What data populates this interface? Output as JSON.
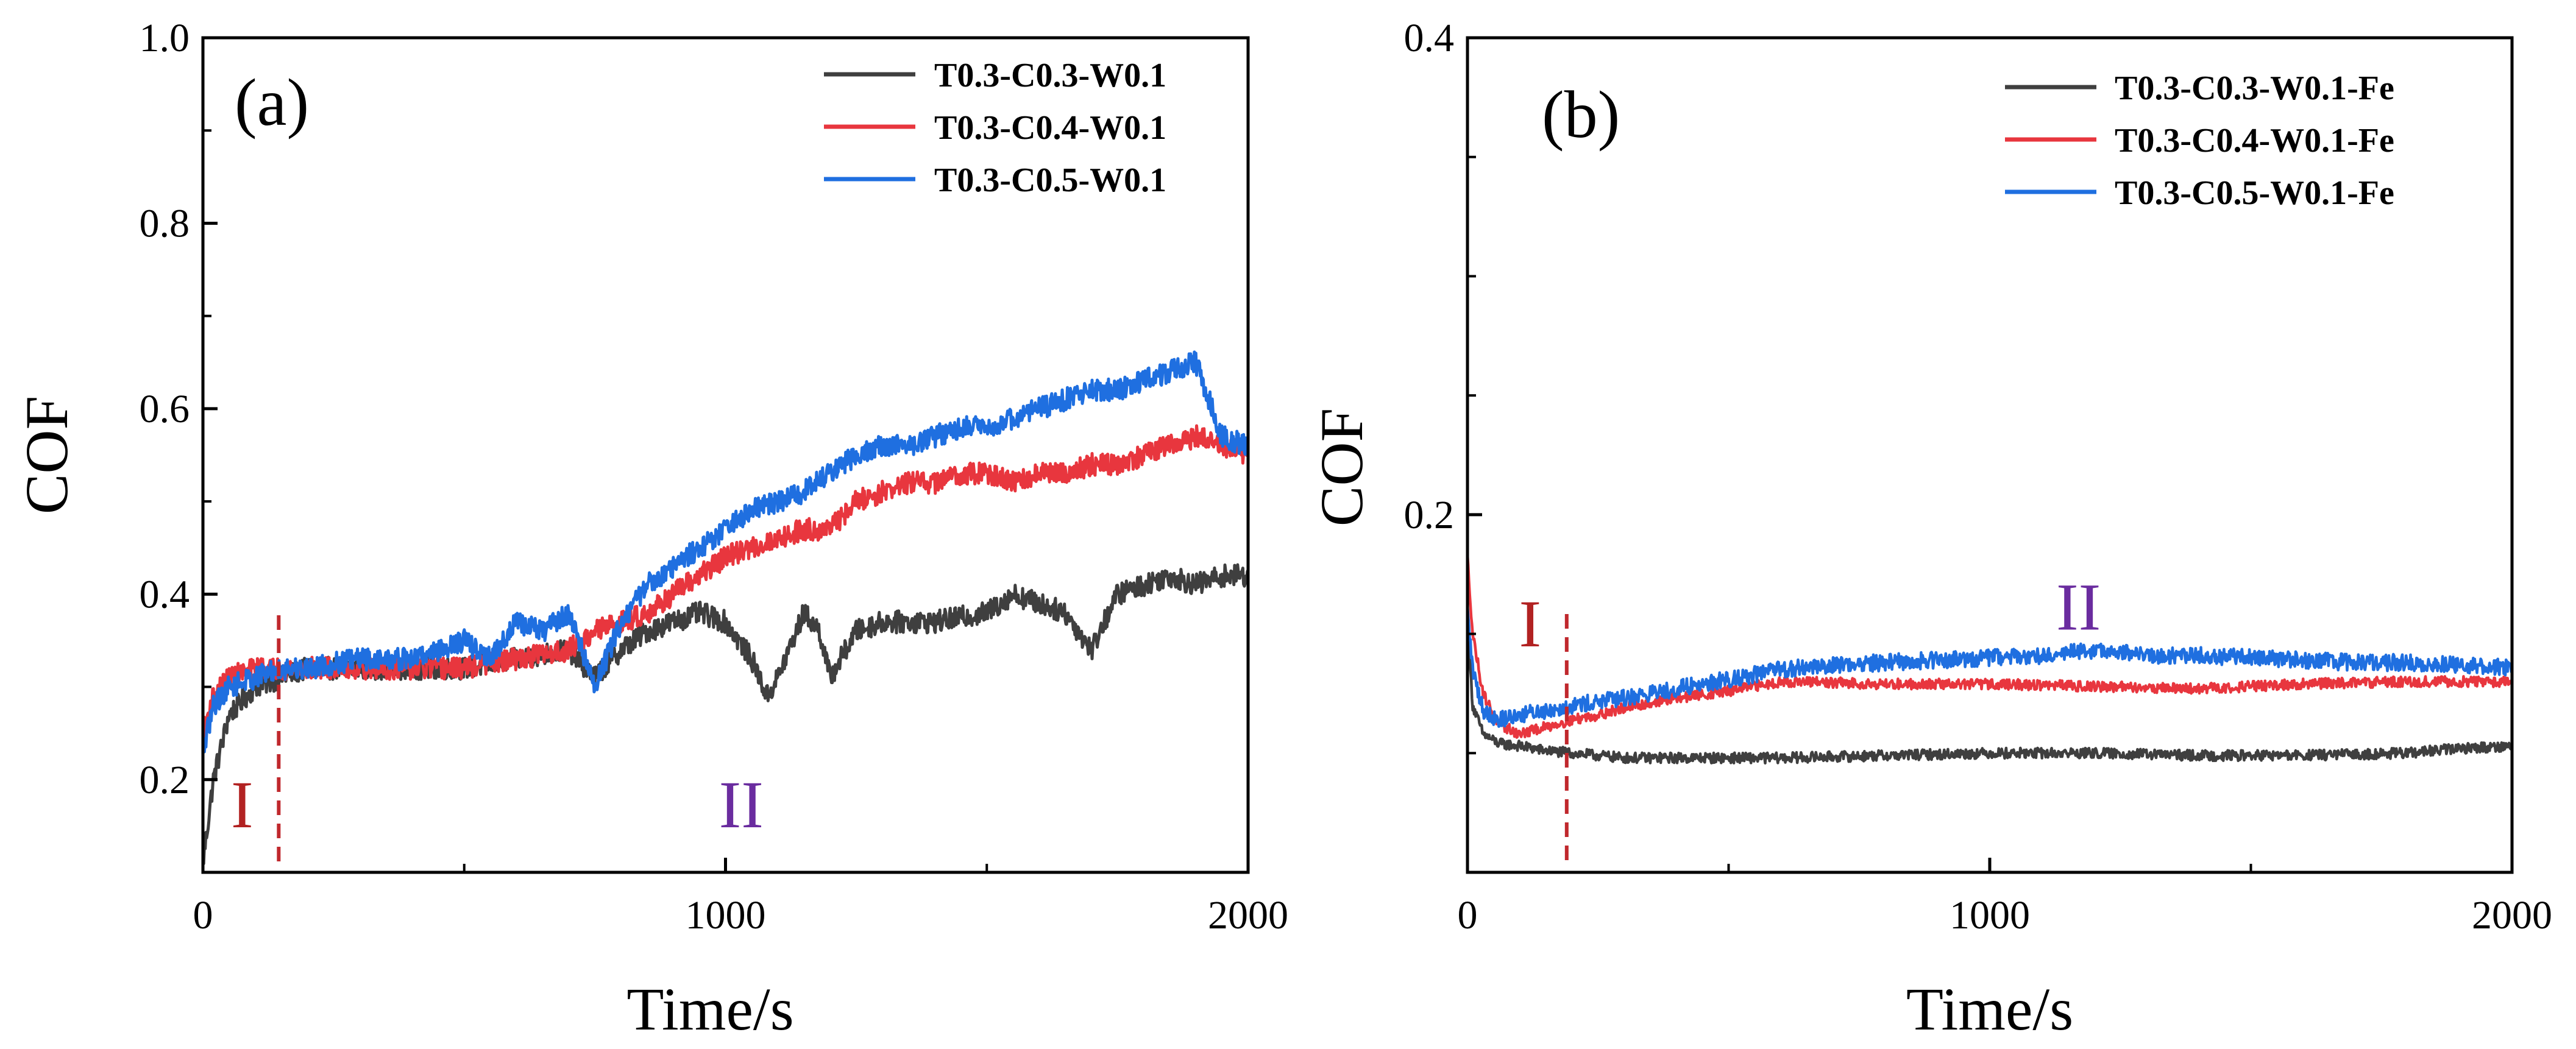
{
  "chart_data": [
    {
      "type": "line",
      "panel_label": "(a)",
      "xlabel": "Time/s",
      "ylabel": "COF",
      "xlim": [
        0,
        2000
      ],
      "ylim": [
        0.1,
        1.0
      ],
      "x_ticks": [
        0,
        1000,
        2000
      ],
      "x_tick_labels": [
        "0",
        "1000",
        "2000"
      ],
      "y_ticks": [
        0.2,
        0.4,
        0.6,
        0.8,
        1.0
      ],
      "y_tick_labels": [
        "0.2",
        "0.4",
        "0.6",
        "0.8",
        "1.0"
      ],
      "grid": false,
      "legend_position": "top-right",
      "stage_divider_x": 145,
      "stage_labels": [
        {
          "text": "I",
          "x": 75,
          "y": 0.175,
          "color": "#b22222"
        },
        {
          "text": "II",
          "x": 1030,
          "y": 0.175,
          "color": "#6a2c9f"
        }
      ],
      "series": [
        {
          "name": "T0.3-C0.3-W0.1",
          "color": "#3f3f3f",
          "x": [
            0,
            20,
            50,
            100,
            150,
            200,
            300,
            400,
            500,
            600,
            700,
            750,
            800,
            850,
            900,
            950,
            1000,
            1050,
            1080,
            1100,
            1150,
            1180,
            1200,
            1250,
            1300,
            1400,
            1500,
            1550,
            1600,
            1650,
            1700,
            1750,
            1800,
            1850,
            1900,
            1950,
            2000
          ],
          "values": [
            0.11,
            0.2,
            0.27,
            0.3,
            0.31,
            0.32,
            0.32,
            0.32,
            0.32,
            0.33,
            0.34,
            0.31,
            0.34,
            0.36,
            0.37,
            0.38,
            0.37,
            0.33,
            0.29,
            0.31,
            0.38,
            0.36,
            0.31,
            0.36,
            0.37,
            0.37,
            0.38,
            0.4,
            0.39,
            0.38,
            0.34,
            0.4,
            0.41,
            0.42,
            0.41,
            0.42,
            0.42
          ]
        },
        {
          "name": "T0.3-C0.4-W0.1",
          "color": "#e8363e",
          "x": [
            0,
            20,
            50,
            100,
            150,
            200,
            300,
            400,
            500,
            600,
            700,
            750,
            800,
            850,
            900,
            950,
            1000,
            1050,
            1100,
            1150,
            1200,
            1250,
            1300,
            1350,
            1400,
            1450,
            1500,
            1550,
            1600,
            1650,
            1700,
            1750,
            1800,
            1850,
            1900,
            1950,
            2000
          ],
          "values": [
            0.25,
            0.29,
            0.31,
            0.32,
            0.32,
            0.32,
            0.32,
            0.32,
            0.32,
            0.33,
            0.34,
            0.36,
            0.37,
            0.38,
            0.4,
            0.42,
            0.44,
            0.45,
            0.46,
            0.47,
            0.47,
            0.5,
            0.51,
            0.52,
            0.52,
            0.53,
            0.53,
            0.52,
            0.53,
            0.53,
            0.54,
            0.54,
            0.55,
            0.56,
            0.57,
            0.56,
            0.55
          ]
        },
        {
          "name": "T0.3-C0.5-W0.1",
          "color": "#1f6fe0",
          "x": [
            0,
            20,
            50,
            100,
            150,
            200,
            300,
            400,
            500,
            550,
            600,
            650,
            700,
            750,
            800,
            850,
            900,
            950,
            1000,
            1050,
            1100,
            1150,
            1200,
            1250,
            1300,
            1350,
            1400,
            1450,
            1500,
            1550,
            1600,
            1650,
            1700,
            1750,
            1800,
            1850,
            1900,
            1950,
            2000
          ],
          "values": [
            0.23,
            0.28,
            0.3,
            0.31,
            0.32,
            0.32,
            0.33,
            0.33,
            0.35,
            0.33,
            0.37,
            0.36,
            0.38,
            0.3,
            0.37,
            0.41,
            0.43,
            0.45,
            0.47,
            0.49,
            0.5,
            0.51,
            0.53,
            0.55,
            0.56,
            0.56,
            0.57,
            0.58,
            0.58,
            0.59,
            0.6,
            0.61,
            0.62,
            0.62,
            0.63,
            0.64,
            0.65,
            0.57,
            0.56
          ]
        }
      ]
    },
    {
      "type": "line",
      "panel_label": "(b)",
      "xlabel": "Time/s",
      "ylabel": "COF",
      "xlim": [
        0,
        2000
      ],
      "ylim": [
        0.05,
        0.4
      ],
      "x_ticks": [
        0,
        1000,
        2000
      ],
      "x_tick_labels": [
        "0",
        "1000",
        "2000"
      ],
      "y_ticks": [
        0.2,
        0.4
      ],
      "y_tick_labels": [
        "0.2",
        "0.4"
      ],
      "grid": false,
      "legend_position": "top-right",
      "stage_divider_x": 190,
      "stage_labels": [
        {
          "text": "I",
          "x": 120,
          "y": 0.155,
          "color": "#b22222"
        },
        {
          "text": "II",
          "x": 1170,
          "y": 0.162,
          "color": "#6a2c9f"
        }
      ],
      "series": [
        {
          "name": "T0.3-C0.3-W0.1-Fe",
          "color": "#3f3f3f",
          "x": [
            0,
            10,
            30,
            60,
            100,
            150,
            200,
            300,
            400,
            500,
            600,
            800,
            1000,
            1200,
            1400,
            1600,
            1800,
            1900,
            2000
          ],
          "values": [
            0.155,
            0.12,
            0.108,
            0.104,
            0.103,
            0.101,
            0.1,
            0.098,
            0.098,
            0.098,
            0.098,
            0.099,
            0.1,
            0.1,
            0.099,
            0.099,
            0.1,
            0.102,
            0.103
          ]
        },
        {
          "name": "T0.3-C0.4-W0.1-Fe",
          "color": "#e8363e",
          "x": [
            0,
            10,
            30,
            60,
            100,
            150,
            200,
            250,
            300,
            400,
            500,
            600,
            800,
            1000,
            1200,
            1400,
            1600,
            1800,
            2000
          ],
          "values": [
            0.182,
            0.15,
            0.125,
            0.112,
            0.108,
            0.111,
            0.114,
            0.116,
            0.119,
            0.123,
            0.126,
            0.13,
            0.129,
            0.129,
            0.128,
            0.127,
            0.129,
            0.13,
            0.13
          ]
        },
        {
          "name": "T0.3-C0.5-W0.1-Fe",
          "color": "#1f6fe0",
          "x": [
            0,
            10,
            30,
            60,
            100,
            150,
            200,
            300,
            400,
            500,
            600,
            700,
            800,
            900,
            1000,
            1100,
            1200,
            1300,
            1400,
            1500,
            1600,
            1700,
            1800,
            1900,
            2000
          ],
          "values": [
            0.16,
            0.135,
            0.118,
            0.114,
            0.116,
            0.118,
            0.12,
            0.123,
            0.127,
            0.131,
            0.135,
            0.137,
            0.138,
            0.139,
            0.14,
            0.141,
            0.143,
            0.141,
            0.141,
            0.14,
            0.139,
            0.138,
            0.138,
            0.137,
            0.136
          ]
        }
      ]
    }
  ]
}
